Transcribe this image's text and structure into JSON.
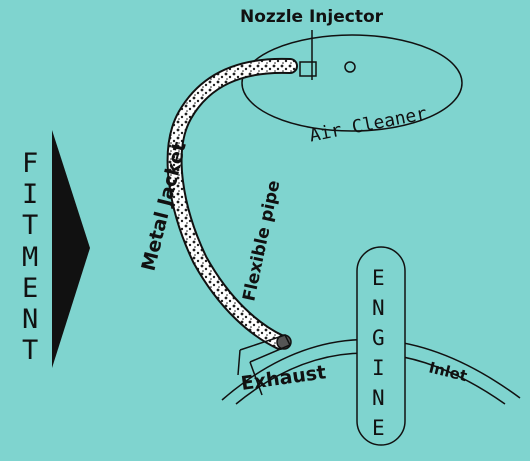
{
  "diagram": {
    "labels": {
      "nozzle_injector": "Nozzle Injector",
      "air_cleaner": "Air Cleaner",
      "metal_jacket": "Metal Jacket",
      "flexible_pipe": "Flexible pipe",
      "exhaust": "Exhaust",
      "inlet": "Inlet",
      "engine": [
        "E",
        "N",
        "G",
        "I",
        "N",
        "E"
      ],
      "fitment": [
        "F",
        "I",
        "T",
        "M",
        "E",
        "N",
        "T"
      ]
    },
    "colors": {
      "background": "#7fd4cf",
      "ink": "#111111"
    }
  }
}
